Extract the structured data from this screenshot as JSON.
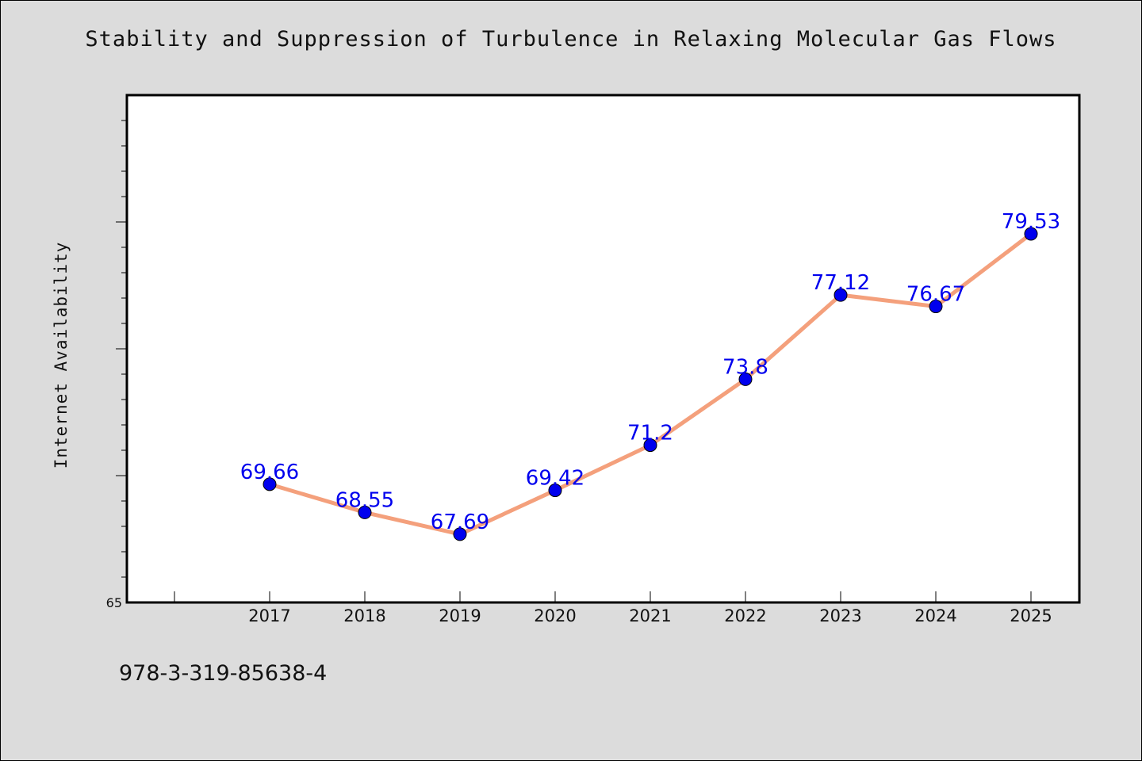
{
  "chart_data": {
    "type": "line",
    "title": "Stability and Suppression of Turbulence in Relaxing Molecular Gas Flows",
    "ylabel": "Internet Availability",
    "xlabel": "",
    "categories": [
      "2017",
      "2018",
      "2019",
      "2020",
      "2021",
      "2022",
      "2023",
      "2024",
      "2025"
    ],
    "series": [
      {
        "values": [
          69.66,
          68.55,
          67.69,
          69.42,
          71.2,
          73.8,
          77.12,
          76.67,
          79.53
        ],
        "labels": [
          "69.66",
          "68.55",
          "67.69",
          "69.42",
          "71.2",
          "73.8",
          "77.12",
          "76.67",
          "79.53"
        ]
      }
    ],
    "ylim": [
      65,
      85
    ],
    "y_tick_labels": [
      {
        "value": 65,
        "label": "65"
      }
    ],
    "grid": false,
    "legend": "none",
    "colors": {
      "line": "#f4a07c",
      "marker": "#0000ee",
      "data_label": "#0000ee",
      "background": "#dcdcdc",
      "plot_background": "#ffffff"
    }
  },
  "footer": {
    "code": "978-3-319-85638-4"
  }
}
